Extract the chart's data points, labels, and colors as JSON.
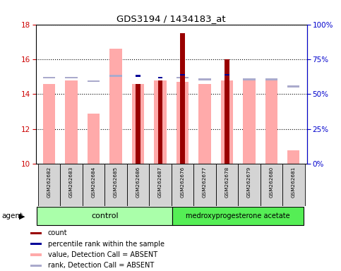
{
  "title": "GDS3194 / 1434183_at",
  "samples": [
    "GSM262682",
    "GSM262683",
    "GSM262684",
    "GSM262685",
    "GSM262686",
    "GSM262687",
    "GSM262676",
    "GSM262677",
    "GSM262678",
    "GSM262679",
    "GSM262680",
    "GSM262681"
  ],
  "value_absent": [
    14.6,
    14.8,
    12.9,
    16.6,
    14.6,
    14.8,
    14.7,
    14.6,
    14.8,
    14.8,
    14.8,
    10.8
  ],
  "rank_absent": [
    14.9,
    14.9,
    14.7,
    15.0,
    null,
    null,
    14.9,
    14.8,
    null,
    14.8,
    14.8,
    14.4
  ],
  "count_red": [
    null,
    null,
    null,
    null,
    14.6,
    14.8,
    17.5,
    null,
    16.0,
    null,
    null,
    null
  ],
  "percentile_blue": [
    null,
    null,
    null,
    null,
    15.0,
    14.9,
    15.05,
    null,
    15.05,
    null,
    null,
    null
  ],
  "ylim_left": [
    10,
    18
  ],
  "ylim_right": [
    0,
    100
  ],
  "yticks_left": [
    10,
    12,
    14,
    16,
    18
  ],
  "yticks_right": [
    0,
    25,
    50,
    75,
    100
  ],
  "ytick_labels_right": [
    "0%",
    "25%",
    "50%",
    "75%",
    "100%"
  ],
  "left_color": "#cc0000",
  "right_color": "#0000cc",
  "pink_color": "#ffaaaa",
  "lavender_color": "#aaaacc",
  "red_color": "#990000",
  "blue_color": "#000099",
  "control_color": "#aaffaa",
  "treatment_color": "#55ee55",
  "background_color": "#ffffff",
  "legend_items": [
    {
      "color": "#990000",
      "label": "count"
    },
    {
      "color": "#000099",
      "label": "percentile rank within the sample"
    },
    {
      "color": "#ffaaaa",
      "label": "value, Detection Call = ABSENT"
    },
    {
      "color": "#aaaacc",
      "label": "rank, Detection Call = ABSENT"
    }
  ]
}
